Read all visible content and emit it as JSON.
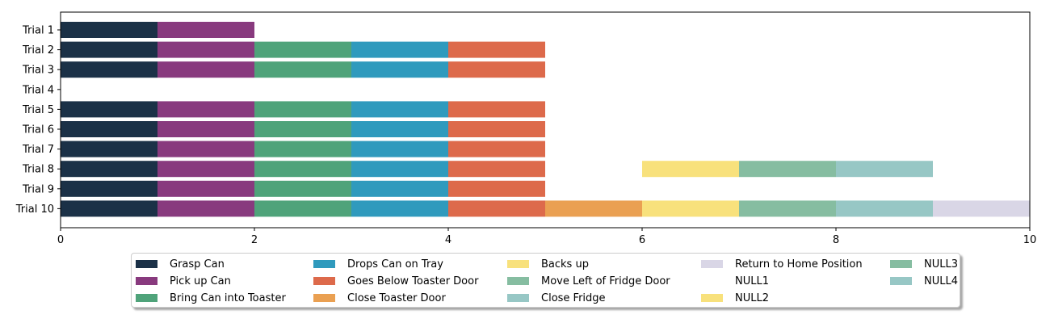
{
  "chart_data": {
    "type": "bar",
    "orientation": "horizontal-stacked-timeline",
    "categories": [
      "Trial 1",
      "Trial 2",
      "Trial 3",
      "Trial 4",
      "Trial 5",
      "Trial 6",
      "Trial 7",
      "Trial 8",
      "Trial 9",
      "Trial 10"
    ],
    "xlim": [
      0,
      10
    ],
    "x_ticks": [
      0,
      2,
      4,
      6,
      8,
      10
    ],
    "grid": false,
    "legend_placement": "bottom-center",
    "series": [
      {
        "name": "Grasp Can",
        "color": "#1b3147"
      },
      {
        "name": "Pick up Can",
        "color": "#883a7e"
      },
      {
        "name": "Bring Can into Toaster",
        "color": "#4fa37a"
      },
      {
        "name": "Drops Can on Tray",
        "color": "#2f9abd"
      },
      {
        "name": "Goes Below Toaster Door",
        "color": "#dd6a4b"
      },
      {
        "name": "Close Toaster Door",
        "color": "#eaa052"
      },
      {
        "name": "Backs up",
        "color": "#f8e17c"
      },
      {
        "name": "Move Left of Fridge Door",
        "color": "#86bda1"
      },
      {
        "name": "Close Fridge",
        "color": "#97c7c5"
      },
      {
        "name": "Return to Home Position",
        "color": "#d9d6e6"
      },
      {
        "name": "NULL1",
        "color": "#ffffff"
      },
      {
        "name": "NULL2",
        "color": "#f8e17c"
      },
      {
        "name": "NULL3",
        "color": "#86bda1"
      },
      {
        "name": "NULL4",
        "color": "#97c7c5"
      }
    ],
    "segments": [
      {
        "trial": "Trial 1",
        "series": "Grasp Can",
        "start": 0,
        "end": 1
      },
      {
        "trial": "Trial 1",
        "series": "Pick up Can",
        "start": 1,
        "end": 2
      },
      {
        "trial": "Trial 2",
        "series": "Grasp Can",
        "start": 0,
        "end": 1
      },
      {
        "trial": "Trial 2",
        "series": "Pick up Can",
        "start": 1,
        "end": 2
      },
      {
        "trial": "Trial 2",
        "series": "Bring Can into Toaster",
        "start": 2,
        "end": 3
      },
      {
        "trial": "Trial 2",
        "series": "Drops Can on Tray",
        "start": 3,
        "end": 4
      },
      {
        "trial": "Trial 2",
        "series": "Goes Below Toaster Door",
        "start": 4,
        "end": 5
      },
      {
        "trial": "Trial 3",
        "series": "Grasp Can",
        "start": 0,
        "end": 1
      },
      {
        "trial": "Trial 3",
        "series": "Pick up Can",
        "start": 1,
        "end": 2
      },
      {
        "trial": "Trial 3",
        "series": "Bring Can into Toaster",
        "start": 2,
        "end": 3
      },
      {
        "trial": "Trial 3",
        "series": "Drops Can on Tray",
        "start": 3,
        "end": 4
      },
      {
        "trial": "Trial 3",
        "series": "Goes Below Toaster Door",
        "start": 4,
        "end": 5
      },
      {
        "trial": "Trial 5",
        "series": "Grasp Can",
        "start": 0,
        "end": 1
      },
      {
        "trial": "Trial 5",
        "series": "Pick up Can",
        "start": 1,
        "end": 2
      },
      {
        "trial": "Trial 5",
        "series": "Bring Can into Toaster",
        "start": 2,
        "end": 3
      },
      {
        "trial": "Trial 5",
        "series": "Drops Can on Tray",
        "start": 3,
        "end": 4
      },
      {
        "trial": "Trial 5",
        "series": "Goes Below Toaster Door",
        "start": 4,
        "end": 5
      },
      {
        "trial": "Trial 6",
        "series": "Grasp Can",
        "start": 0,
        "end": 1
      },
      {
        "trial": "Trial 6",
        "series": "Pick up Can",
        "start": 1,
        "end": 2
      },
      {
        "trial": "Trial 6",
        "series": "Bring Can into Toaster",
        "start": 2,
        "end": 3
      },
      {
        "trial": "Trial 6",
        "series": "Drops Can on Tray",
        "start": 3,
        "end": 4
      },
      {
        "trial": "Trial 6",
        "series": "Goes Below Toaster Door",
        "start": 4,
        "end": 5
      },
      {
        "trial": "Trial 7",
        "series": "Grasp Can",
        "start": 0,
        "end": 1
      },
      {
        "trial": "Trial 7",
        "series": "Pick up Can",
        "start": 1,
        "end": 2
      },
      {
        "trial": "Trial 7",
        "series": "Bring Can into Toaster",
        "start": 2,
        "end": 3
      },
      {
        "trial": "Trial 7",
        "series": "Drops Can on Tray",
        "start": 3,
        "end": 4
      },
      {
        "trial": "Trial 7",
        "series": "Goes Below Toaster Door",
        "start": 4,
        "end": 5
      },
      {
        "trial": "Trial 8",
        "series": "Grasp Can",
        "start": 0,
        "end": 1
      },
      {
        "trial": "Trial 8",
        "series": "Pick up Can",
        "start": 1,
        "end": 2
      },
      {
        "trial": "Trial 8",
        "series": "Bring Can into Toaster",
        "start": 2,
        "end": 3
      },
      {
        "trial": "Trial 8",
        "series": "Drops Can on Tray",
        "start": 3,
        "end": 4
      },
      {
        "trial": "Trial 8",
        "series": "Goes Below Toaster Door",
        "start": 4,
        "end": 5
      },
      {
        "trial": "Trial 8",
        "series": "NULL1",
        "start": 5,
        "end": 6
      },
      {
        "trial": "Trial 8",
        "series": "NULL2",
        "start": 6,
        "end": 7
      },
      {
        "trial": "Trial 8",
        "series": "NULL3",
        "start": 7,
        "end": 8
      },
      {
        "trial": "Trial 8",
        "series": "NULL4",
        "start": 8,
        "end": 9
      },
      {
        "trial": "Trial 9",
        "series": "Grasp Can",
        "start": 0,
        "end": 1
      },
      {
        "trial": "Trial 9",
        "series": "Pick up Can",
        "start": 1,
        "end": 2
      },
      {
        "trial": "Trial 9",
        "series": "Bring Can into Toaster",
        "start": 2,
        "end": 3
      },
      {
        "trial": "Trial 9",
        "series": "Drops Can on Tray",
        "start": 3,
        "end": 4
      },
      {
        "trial": "Trial 9",
        "series": "Goes Below Toaster Door",
        "start": 4,
        "end": 5
      },
      {
        "trial": "Trial 10",
        "series": "Grasp Can",
        "start": 0,
        "end": 1
      },
      {
        "trial": "Trial 10",
        "series": "Pick up Can",
        "start": 1,
        "end": 2
      },
      {
        "trial": "Trial 10",
        "series": "Bring Can into Toaster",
        "start": 2,
        "end": 3
      },
      {
        "trial": "Trial 10",
        "series": "Drops Can on Tray",
        "start": 3,
        "end": 4
      },
      {
        "trial": "Trial 10",
        "series": "Goes Below Toaster Door",
        "start": 4,
        "end": 5
      },
      {
        "trial": "Trial 10",
        "series": "Close Toaster Door",
        "start": 5,
        "end": 6
      },
      {
        "trial": "Trial 10",
        "series": "Backs up",
        "start": 6,
        "end": 7
      },
      {
        "trial": "Trial 10",
        "series": "Move Left of Fridge Door",
        "start": 7,
        "end": 8
      },
      {
        "trial": "Trial 10",
        "series": "Close Fridge",
        "start": 8,
        "end": 9
      },
      {
        "trial": "Trial 10",
        "series": "Return to Home Position",
        "start": 9,
        "end": 10
      }
    ]
  }
}
